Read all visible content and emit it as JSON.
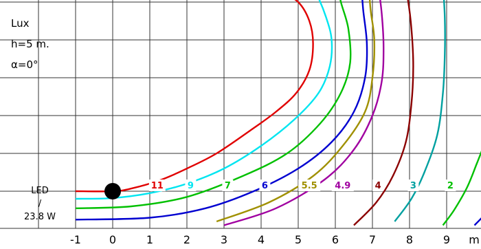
{
  "chart_data": {
    "type": "contour",
    "xlabel": "m",
    "xlim": [
      -2,
      10
    ],
    "ylim": [
      -0.5,
      5.5
    ],
    "x_ticks": [
      "-1",
      "0",
      "1",
      "2",
      "3",
      "4",
      "5",
      "6",
      "7",
      "8",
      "9"
    ],
    "grid": true,
    "info": {
      "unit": "Lux",
      "height": "h=5 m.",
      "angle": "α=0°"
    },
    "side_label": {
      "line1": "LED",
      "line2": "/",
      "line3": "23.8 W"
    },
    "luminaire": {
      "x": 0,
      "y": 0
    },
    "series": [
      {
        "name": "11",
        "color": "#e00000",
        "points": [
          [
            -1.0,
            0.0
          ],
          [
            0.0,
            0.0
          ],
          [
            0.5,
            0.07
          ],
          [
            1.3,
            0.3
          ],
          [
            2.0,
            0.6
          ],
          [
            2.8,
            1.0
          ],
          [
            3.7,
            1.6
          ],
          [
            4.4,
            2.1
          ],
          [
            4.95,
            2.6
          ],
          [
            5.3,
            3.2
          ],
          [
            5.4,
            3.9
          ],
          [
            5.3,
            4.5
          ],
          [
            5.0,
            5.0
          ],
          [
            4.5,
            5.3
          ]
        ]
      },
      {
        "name": "9",
        "color": "#00e5f0",
        "points": [
          [
            -1.0,
            -0.2
          ],
          [
            0.0,
            -0.18
          ],
          [
            1.0,
            -0.05
          ],
          [
            2.0,
            0.2
          ],
          [
            3.0,
            0.6
          ],
          [
            4.0,
            1.2
          ],
          [
            4.9,
            1.9
          ],
          [
            5.55,
            2.6
          ],
          [
            5.85,
            3.3
          ],
          [
            5.9,
            4.0
          ],
          [
            5.75,
            4.6
          ],
          [
            5.5,
            5.2
          ],
          [
            5.3,
            5.5
          ]
        ]
      },
      {
        "name": "7",
        "color": "#00c000",
        "points": [
          [
            -1.0,
            -0.45
          ],
          [
            0.5,
            -0.4
          ],
          [
            2.0,
            -0.15
          ],
          [
            3.5,
            0.4
          ],
          [
            4.7,
            1.0
          ],
          [
            5.6,
            1.8
          ],
          [
            6.15,
            2.6
          ],
          [
            6.4,
            3.4
          ],
          [
            6.35,
            4.3
          ],
          [
            6.15,
            5.0
          ],
          [
            6.05,
            5.5
          ]
        ]
      },
      {
        "name": "6",
        "color": "#0000d0",
        "points": [
          [
            -1.0,
            -0.75
          ],
          [
            1.0,
            -0.7
          ],
          [
            2.5,
            -0.45
          ],
          [
            3.8,
            0.0
          ],
          [
            5.0,
            0.6
          ],
          [
            5.9,
            1.3
          ],
          [
            6.5,
            2.1
          ],
          [
            6.8,
            3.0
          ],
          [
            6.85,
            3.9
          ],
          [
            6.75,
            4.8
          ],
          [
            6.7,
            5.5
          ]
        ]
      },
      {
        "name": "5.5",
        "color": "#a09000",
        "points": [
          [
            2.8,
            -0.8
          ],
          [
            4.2,
            -0.3
          ],
          [
            5.4,
            0.4
          ],
          [
            6.2,
            1.2
          ],
          [
            6.8,
            2.1
          ],
          [
            7.0,
            3.0
          ],
          [
            7.05,
            4.0
          ],
          [
            6.95,
            4.8
          ],
          [
            6.9,
            5.5
          ]
        ]
      },
      {
        "name": "4.9",
        "color": "#a000a0",
        "points": [
          [
            3.0,
            -0.9
          ],
          [
            4.4,
            -0.45
          ],
          [
            5.7,
            0.3
          ],
          [
            6.5,
            1.1
          ],
          [
            7.0,
            2.0
          ],
          [
            7.25,
            2.9
          ],
          [
            7.3,
            3.8
          ],
          [
            7.25,
            4.7
          ],
          [
            7.15,
            5.5
          ]
        ]
      },
      {
        "name": "4",
        "color": "#8b0000",
        "points": [
          [
            6.5,
            -0.9
          ],
          [
            7.1,
            -0.3
          ],
          [
            7.55,
            0.4
          ],
          [
            7.9,
            1.3
          ],
          [
            8.05,
            2.3
          ],
          [
            8.1,
            3.3
          ],
          [
            8.05,
            4.3
          ],
          [
            7.95,
            5.1
          ],
          [
            7.85,
            5.5
          ]
        ]
      },
      {
        "name": "3",
        "color": "#00a0a0",
        "points": [
          [
            7.6,
            -0.8
          ],
          [
            8.05,
            -0.2
          ],
          [
            8.4,
            0.5
          ],
          [
            8.75,
            1.5
          ],
          [
            8.9,
            2.6
          ],
          [
            8.95,
            3.6
          ],
          [
            8.95,
            4.6
          ],
          [
            8.9,
            5.5
          ]
        ]
      },
      {
        "name": "2",
        "color": "#00c000",
        "points": [
          [
            8.9,
            -0.9
          ],
          [
            9.2,
            -0.5
          ],
          [
            9.55,
            0.1
          ],
          [
            9.8,
            0.7
          ],
          [
            10.0,
            1.2
          ]
        ]
      },
      {
        "name": "",
        "color": "#0000d0",
        "points": [
          [
            9.75,
            -0.9
          ],
          [
            10.0,
            -0.65
          ]
        ]
      }
    ],
    "labels_y": 0,
    "label_positions": [
      {
        "name": "11",
        "x": 1.2,
        "color": "#e00000"
      },
      {
        "name": "9",
        "x": 2.1,
        "color": "#00e5f0"
      },
      {
        "name": "7",
        "x": 3.1,
        "color": "#00c000"
      },
      {
        "name": "6",
        "x": 4.1,
        "color": "#0000d0"
      },
      {
        "name": "5.5",
        "x": 5.3,
        "color": "#a09000"
      },
      {
        "name": "4.9",
        "x": 6.2,
        "color": "#a000a0"
      },
      {
        "name": "4",
        "x": 7.15,
        "color": "#8b0000"
      },
      {
        "name": "3",
        "x": 8.1,
        "color": "#00a0a0"
      },
      {
        "name": "2",
        "x": 9.1,
        "color": "#00c000"
      }
    ]
  }
}
